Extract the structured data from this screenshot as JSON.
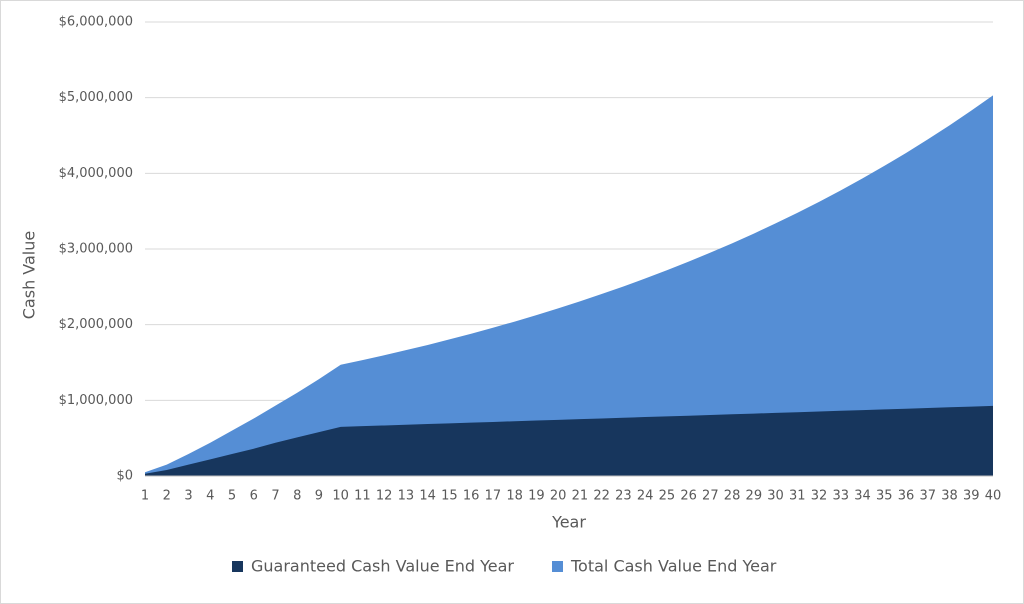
{
  "chart_data": {
    "type": "area",
    "x_label": "Year",
    "y_label": "Cash Value",
    "categories": [
      1,
      2,
      3,
      4,
      5,
      6,
      7,
      8,
      9,
      10,
      11,
      12,
      13,
      14,
      15,
      16,
      17,
      18,
      19,
      20,
      21,
      22,
      23,
      24,
      25,
      26,
      27,
      28,
      29,
      30,
      31,
      32,
      33,
      34,
      35,
      36,
      37,
      38,
      39,
      40
    ],
    "series": [
      {
        "name": "Guaranteed Cash Value End Year",
        "color": "#17365d",
        "values": [
          30000,
          80000,
          150000,
          220000,
          290000,
          360000,
          440000,
          510000,
          580000,
          650000,
          659000,
          668000,
          678000,
          687000,
          696000,
          705000,
          714000,
          724000,
          733000,
          742000,
          751000,
          760000,
          770000,
          779000,
          788000,
          797000,
          806000,
          816000,
          825000,
          834000,
          843000,
          852000,
          862000,
          871000,
          880000,
          889000,
          898000,
          908000,
          917000,
          926000
        ]
      },
      {
        "name": "Total Cash Value End Year",
        "color": "#558ed5",
        "values": [
          50000,
          150000,
          290000,
          440000,
          600000,
          760000,
          930000,
          1100000,
          1280000,
          1470000,
          1532000,
          1596000,
          1663000,
          1732000,
          1805000,
          1880000,
          1959000,
          2041000,
          2126000,
          2215000,
          2308000,
          2405000,
          2505000,
          2610000,
          2719000,
          2833000,
          2952000,
          3075000,
          3204000,
          3338000,
          3478000,
          3623000,
          3775000,
          3933000,
          4098000,
          4269000,
          4448000,
          4634000,
          4828000,
          5030000
        ]
      }
    ],
    "ylim": [
      0,
      6000000
    ],
    "yticks": [
      {
        "value": 0,
        "label": "$0"
      },
      {
        "value": 1000000,
        "label": "$1,000,000"
      },
      {
        "value": 2000000,
        "label": "$2,000,000"
      },
      {
        "value": 3000000,
        "label": "$3,000,000"
      },
      {
        "value": 4000000,
        "label": "$4,000,000"
      },
      {
        "value": 5000000,
        "label": "$5,000,000"
      },
      {
        "value": 6000000,
        "label": "$6,000,000"
      }
    ],
    "grid": true,
    "legend": "bottom"
  }
}
